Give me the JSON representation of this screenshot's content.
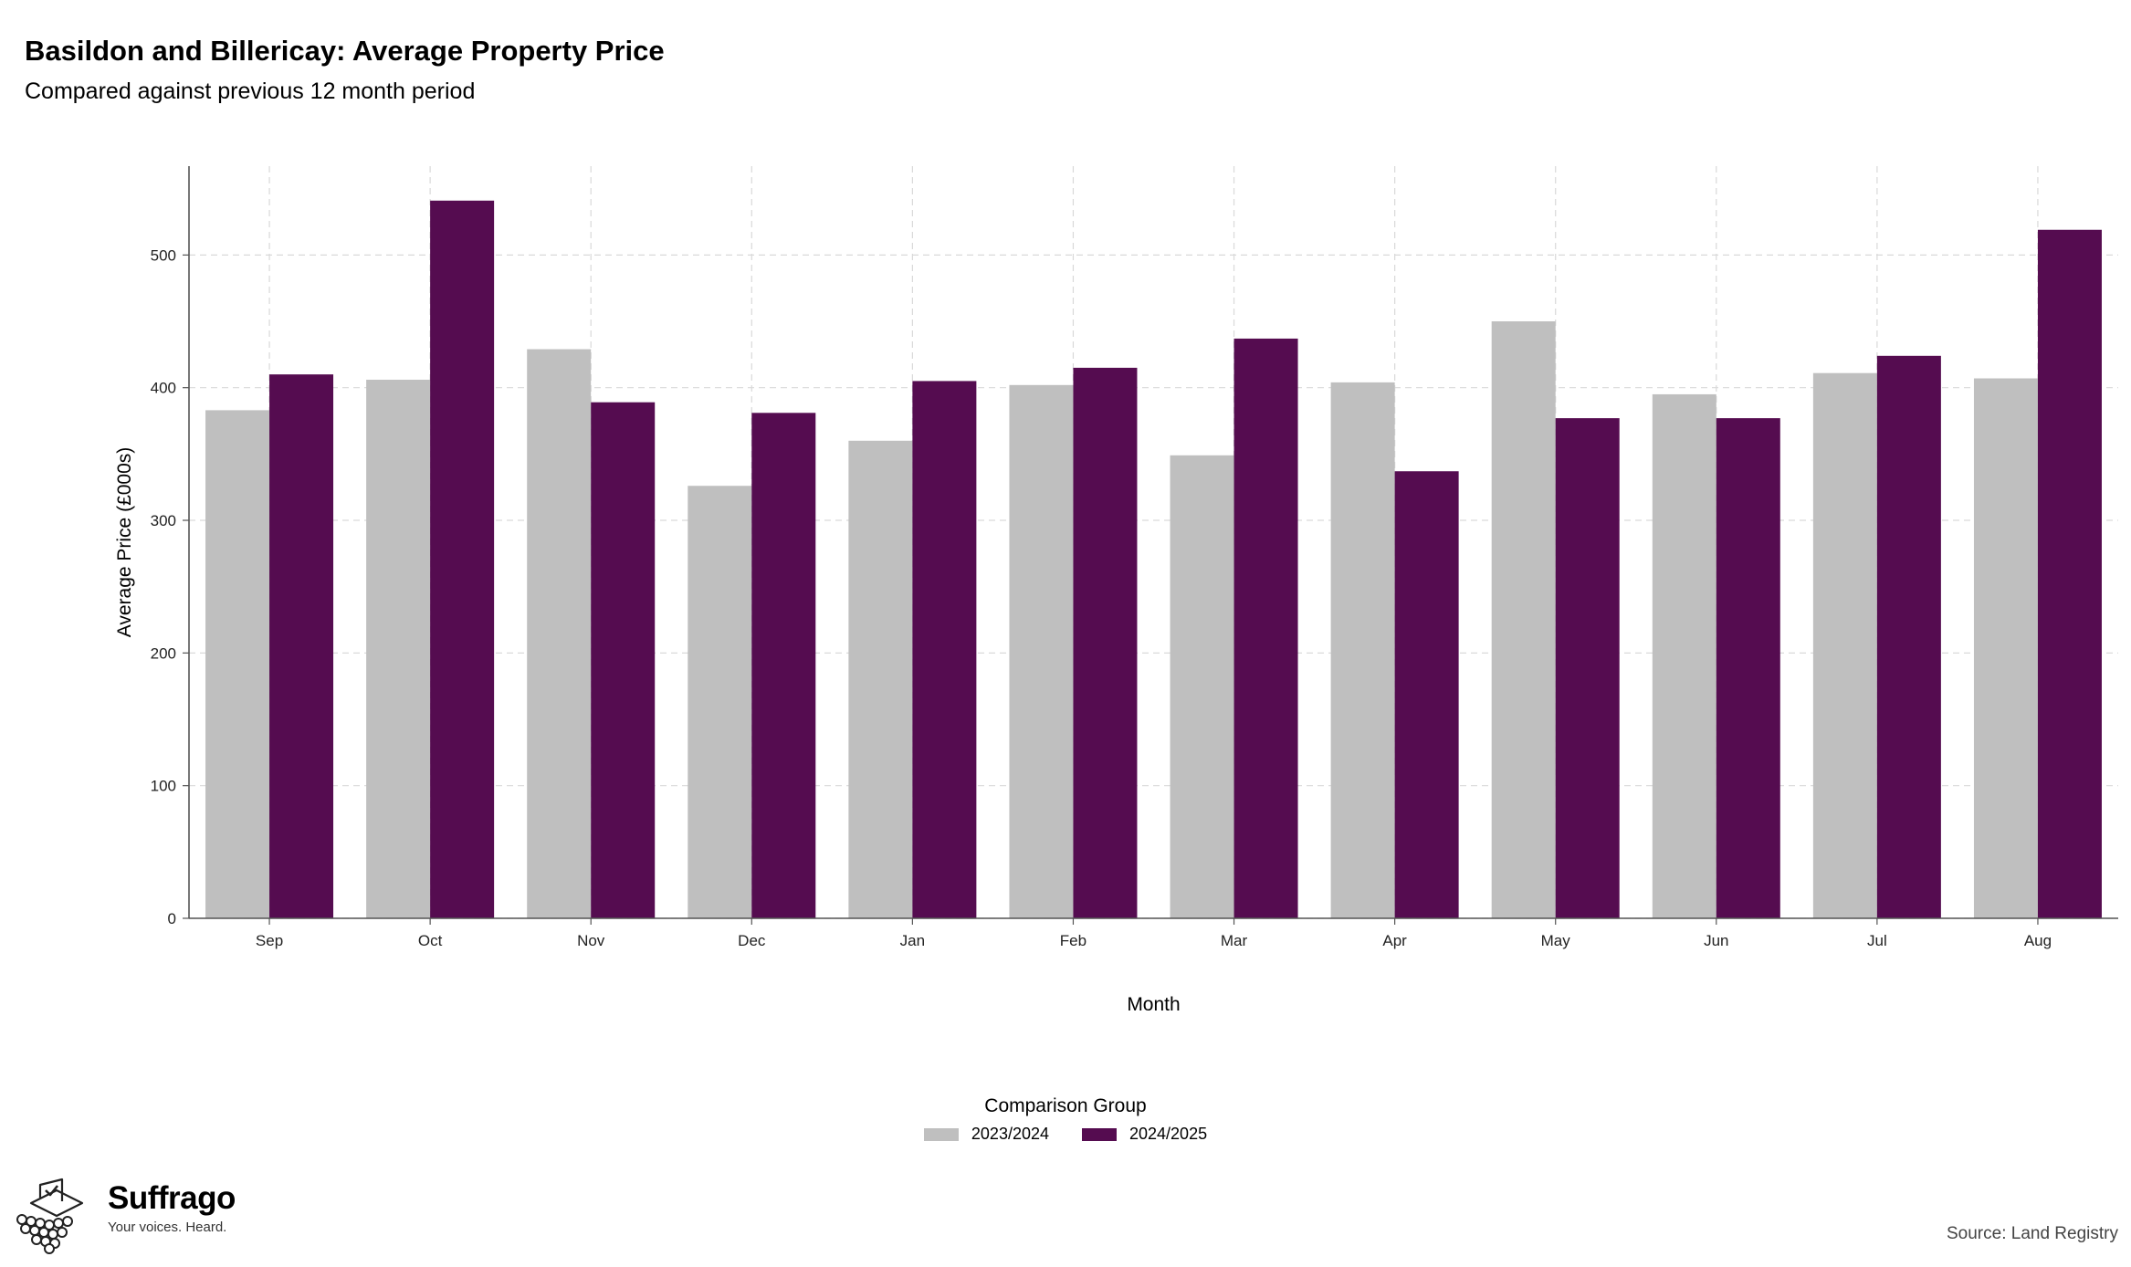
{
  "title": "Basildon and Billericay: Average Property Price",
  "subtitle": "Compared against previous 12 month period",
  "chart_data": {
    "type": "bar",
    "categories": [
      "Sep",
      "Oct",
      "Nov",
      "Dec",
      "Jan",
      "Feb",
      "Mar",
      "Apr",
      "May",
      "Jun",
      "Jul",
      "Aug"
    ],
    "series": [
      {
        "name": "2023/2024",
        "color": "#bfbfbf",
        "values": [
          383,
          406,
          429,
          326,
          360,
          402,
          349,
          404,
          450,
          395,
          411,
          407
        ]
      },
      {
        "name": "2024/2025",
        "color": "#550c50",
        "values": [
          410,
          541,
          389,
          381,
          405,
          415,
          437,
          337,
          377,
          377,
          424,
          519
        ]
      }
    ],
    "xlabel": "Month",
    "ylabel": "Average Price (£000s)",
    "ylim": [
      0,
      567
    ],
    "yticks": [
      0,
      100,
      200,
      300,
      400,
      500
    ],
    "grid": true,
    "legend_title": "Comparison Group",
    "legend_position": "bottom"
  },
  "logo": {
    "name": "Suffrago",
    "tagline": "Your voices. Heard."
  },
  "source": "Source: Land Registry"
}
